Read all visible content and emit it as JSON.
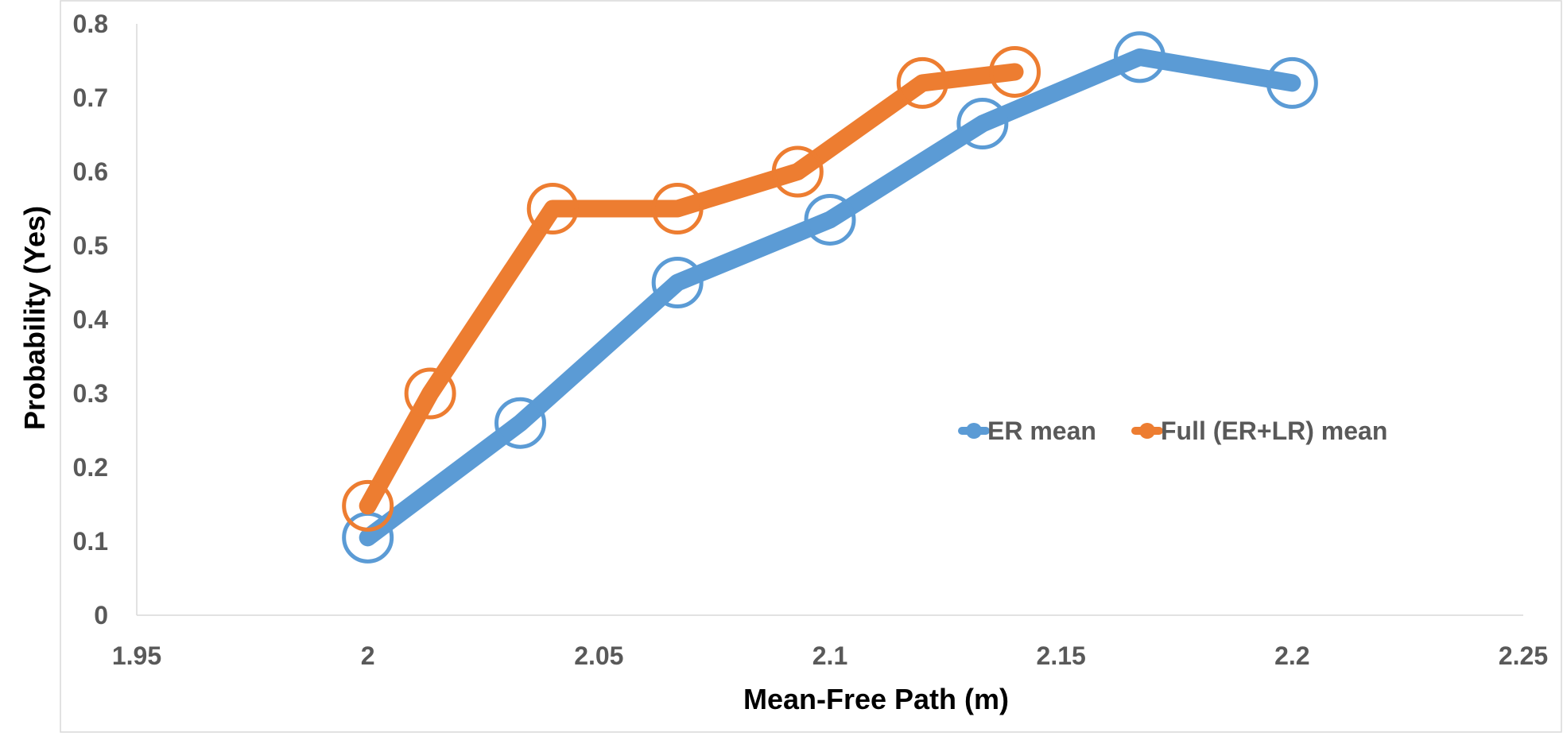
{
  "chart_data": {
    "type": "line",
    "title": "",
    "xlabel": "Mean-Free Path (m)",
    "ylabel": "Probability (Yes)",
    "xlim": [
      1.95,
      2.25
    ],
    "ylim": [
      0,
      0.8
    ],
    "x_ticks": [
      1.95,
      2,
      2.05,
      2.1,
      2.15,
      2.2,
      2.25
    ],
    "x_tick_labels": [
      "1.95",
      "2",
      "2.05",
      "2.1",
      "2.15",
      "2.2",
      "2.25"
    ],
    "y_ticks": [
      0,
      0.1,
      0.2,
      0.3,
      0.4,
      0.5,
      0.6,
      0.7,
      0.8
    ],
    "y_tick_labels": [
      "0",
      "0.1",
      "0.2",
      "0.3",
      "0.4",
      "0.5",
      "0.6",
      "0.7",
      "0.8"
    ],
    "grid": false,
    "legend_position": "right-middle",
    "series": [
      {
        "name": "ER mean",
        "color": "#5b9bd5",
        "x": [
          2.0,
          2.033,
          2.067,
          2.1,
          2.133,
          2.167,
          2.2
        ],
        "y": [
          0.105,
          0.26,
          0.45,
          0.535,
          0.665,
          0.755,
          0.72
        ]
      },
      {
        "name": "Full (ER+LR) mean",
        "color": "#ed7d31",
        "x": [
          2.0,
          2.0135,
          2.04,
          2.067,
          2.093,
          2.12,
          2.14
        ],
        "y": [
          0.148,
          0.3,
          0.55,
          0.55,
          0.6,
          0.72,
          0.735
        ]
      }
    ]
  }
}
